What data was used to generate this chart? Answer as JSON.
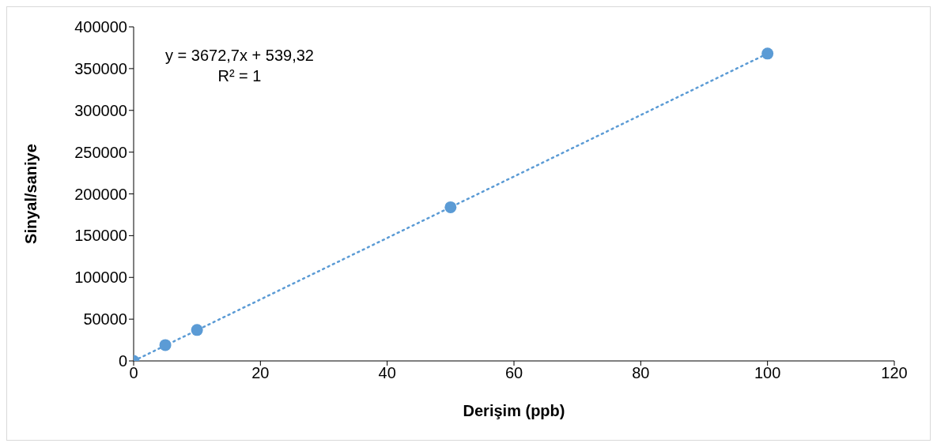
{
  "chart_data": {
    "type": "scatter",
    "xlabel": "Derişim (ppb)",
    "ylabel": "Sinyal/saniye",
    "annotations": [
      "y = 3672,7x + 539,32",
      "R² = 1"
    ],
    "xlim": [
      0,
      120
    ],
    "xticks": [
      0,
      20,
      40,
      60,
      80,
      100,
      120
    ],
    "ylim": [
      0,
      400000
    ],
    "yticks": [
      0,
      50000,
      100000,
      150000,
      200000,
      250000,
      300000,
      350000,
      400000
    ],
    "marker": "circle",
    "series": [
      {
        "color": "#5b9bd5",
        "x": [
          0,
          5,
          10,
          50,
          100
        ],
        "values": [
          0,
          19000,
          37000,
          184000,
          368000
        ]
      },
      {
        "type": "line",
        "color": "#5b9bd5",
        "line_style": "dotted",
        "marker": "none",
        "x": [
          0,
          100
        ],
        "values": [
          0,
          368000
        ]
      }
    ]
  }
}
